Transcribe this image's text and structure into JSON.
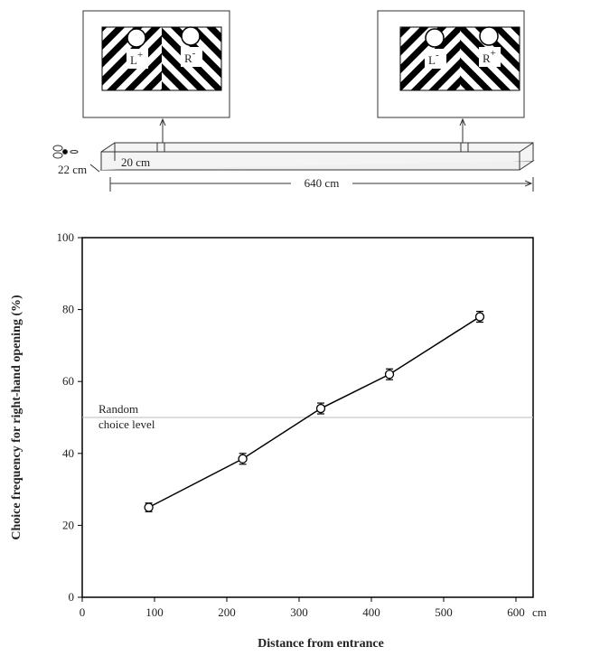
{
  "diagram": {
    "panels": [
      {
        "left": {
          "letter": "L",
          "sign": "+"
        },
        "right": {
          "letter": "R",
          "sign": "-"
        }
      },
      {
        "left": {
          "letter": "L",
          "sign": "-"
        },
        "right": {
          "letter": "R",
          "sign": "+"
        }
      }
    ],
    "height_label": "22 cm",
    "width_label": "20 cm",
    "length_label": "640 cm"
  },
  "chart_data": {
    "type": "line",
    "xlabel": "Distance from entrance",
    "x_unit": "cm",
    "ylabel": "Choice frequency for right-hand opening (%)",
    "x": [
      92,
      222,
      330,
      425,
      550
    ],
    "series": [
      {
        "color": "#000000",
        "values": [
          25,
          38.5,
          52.5,
          62,
          78
        ],
        "errors": [
          1.2,
          1.5,
          1.5,
          1.5,
          1.5
        ]
      }
    ],
    "xlim": [
      0,
      600
    ],
    "xticks": [
      0,
      100,
      200,
      300,
      400,
      500,
      600
    ],
    "ylim": [
      0,
      100
    ],
    "yticks": [
      0,
      20,
      40,
      60,
      80,
      100
    ],
    "reference_line": {
      "value": 50,
      "color": "#bbbbbb",
      "label_lines": [
        "Random",
        "choice level"
      ]
    }
  }
}
